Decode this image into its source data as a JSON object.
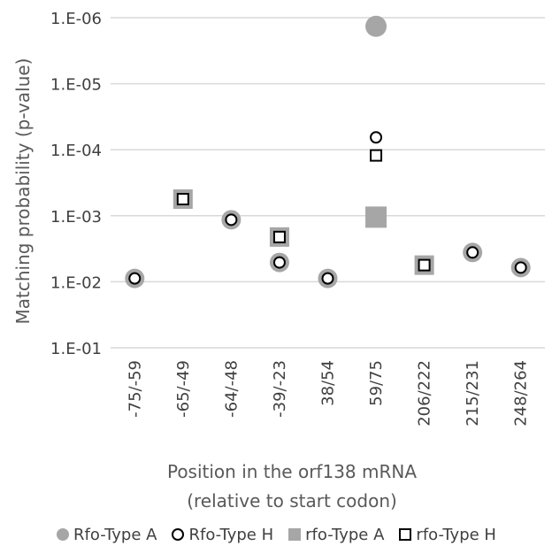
{
  "chart_data": {
    "type": "scatter",
    "ylabel": "Matching probability (p-value)",
    "xlabel_lines": [
      "Position in the orf138 mRNA",
      "(relative to start codon)"
    ],
    "y_scale": "log",
    "y_reversed": true,
    "y_ticks": [
      "1.E-06",
      "1.E-05",
      "1.E-04",
      "1.E-03",
      "1.E-02",
      "1.E-01"
    ],
    "y_tick_values": [
      1e-06,
      1e-05,
      0.0001,
      0.001,
      0.01,
      0.1
    ],
    "ylim": [
      1e-06,
      0.1
    ],
    "grid": true,
    "legend_position": "bottom",
    "categories": [
      "-75/-59",
      "-65/-49",
      "-64/-48",
      "-39/-23",
      "38/54",
      "59/75",
      "206/222",
      "215/231",
      "248/264"
    ],
    "series": [
      {
        "name": "Rfo-Type A",
        "marker": "filled-circle",
        "color": "#a6a6a6",
        "values": [
          0.0089,
          null,
          0.00115,
          0.0051,
          0.0089,
          1.35e-06,
          null,
          0.0036,
          0.0061
        ]
      },
      {
        "name": "Rfo-Type H",
        "marker": "open-circle",
        "color": "#000000",
        "values": [
          0.0089,
          null,
          0.00115,
          0.0051,
          0.0089,
          6.5e-05,
          null,
          0.0036,
          0.0061
        ]
      },
      {
        "name": "rfo-Type A",
        "marker": "filled-square",
        "color": "#a6a6a6",
        "values": [
          null,
          0.00056,
          null,
          0.0021,
          null,
          0.00105,
          0.0056,
          null,
          null
        ]
      },
      {
        "name": "rfo-Type H",
        "marker": "open-square",
        "color": "#000000",
        "values": [
          null,
          0.00056,
          null,
          0.0021,
          null,
          0.000122,
          0.0056,
          null,
          null
        ]
      }
    ]
  }
}
